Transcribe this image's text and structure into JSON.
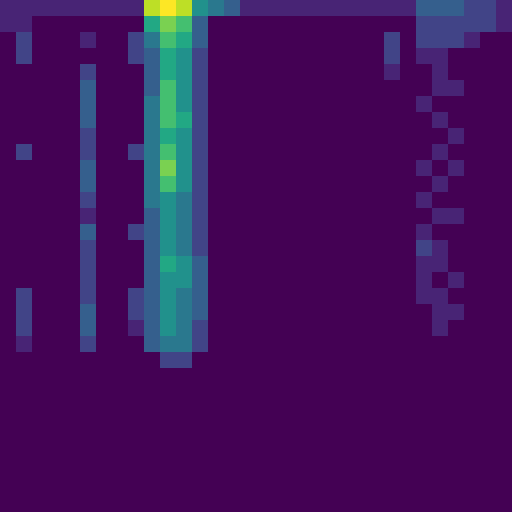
{
  "chart_data": {
    "type": "heatmap",
    "tick_labels": false,
    "color_range": [
      0,
      10
    ],
    "cells": [
      [
        1,
        1,
        1,
        1,
        1,
        1,
        1,
        1,
        1,
        9,
        10,
        9,
        5,
        4,
        3,
        1,
        1,
        1,
        1,
        1,
        1,
        1,
        1,
        1,
        1,
        1,
        3,
        3,
        3,
        2,
        2,
        1
      ],
      [
        1,
        1,
        0,
        0,
        0,
        0,
        0,
        0,
        0,
        6,
        8,
        7,
        3,
        0,
        0,
        0,
        0,
        0,
        0,
        0,
        0,
        0,
        0,
        0,
        0,
        0,
        2,
        2,
        2,
        2,
        2,
        1
      ],
      [
        0,
        2,
        0,
        0,
        0,
        1,
        0,
        0,
        2,
        4,
        7,
        6,
        3,
        0,
        0,
        0,
        0,
        0,
        0,
        0,
        0,
        0,
        0,
        0,
        2,
        0,
        2,
        2,
        2,
        1,
        0,
        0
      ],
      [
        0,
        2,
        0,
        0,
        0,
        0,
        0,
        0,
        2,
        3,
        6,
        5,
        2,
        0,
        0,
        0,
        0,
        0,
        0,
        0,
        0,
        0,
        0,
        0,
        2,
        0,
        1,
        1,
        0,
        0,
        0,
        0
      ],
      [
        0,
        0,
        0,
        0,
        0,
        2,
        0,
        0,
        0,
        3,
        6,
        5,
        2,
        0,
        0,
        0,
        0,
        0,
        0,
        0,
        0,
        0,
        0,
        0,
        1,
        0,
        0,
        1,
        0,
        0,
        0,
        0
      ],
      [
        0,
        0,
        0,
        0,
        0,
        3,
        0,
        0,
        0,
        3,
        7,
        5,
        2,
        0,
        0,
        0,
        0,
        0,
        0,
        0,
        0,
        0,
        0,
        0,
        0,
        0,
        0,
        1,
        1,
        0,
        0,
        0
      ],
      [
        0,
        0,
        0,
        0,
        0,
        3,
        0,
        0,
        0,
        4,
        7,
        5,
        2,
        0,
        0,
        0,
        0,
        0,
        0,
        0,
        0,
        0,
        0,
        0,
        0,
        0,
        1,
        0,
        0,
        0,
        0,
        0
      ],
      [
        0,
        0,
        0,
        0,
        0,
        3,
        0,
        0,
        0,
        4,
        7,
        6,
        2,
        0,
        0,
        0,
        0,
        0,
        0,
        0,
        0,
        0,
        0,
        0,
        0,
        0,
        0,
        1,
        0,
        0,
        0,
        0
      ],
      [
        0,
        0,
        0,
        0,
        0,
        2,
        0,
        0,
        0,
        4,
        6,
        5,
        2,
        0,
        0,
        0,
        0,
        0,
        0,
        0,
        0,
        0,
        0,
        0,
        0,
        0,
        0,
        0,
        1,
        0,
        0,
        0
      ],
      [
        0,
        2,
        0,
        0,
        0,
        2,
        0,
        0,
        2,
        4,
        7,
        5,
        2,
        0,
        0,
        0,
        0,
        0,
        0,
        0,
        0,
        0,
        0,
        0,
        0,
        0,
        0,
        1,
        0,
        0,
        0,
        0
      ],
      [
        0,
        0,
        0,
        0,
        0,
        3,
        0,
        0,
        0,
        4,
        8,
        5,
        2,
        0,
        0,
        0,
        0,
        0,
        0,
        0,
        0,
        0,
        0,
        0,
        0,
        0,
        1,
        0,
        1,
        0,
        0,
        0
      ],
      [
        0,
        0,
        0,
        0,
        0,
        3,
        0,
        0,
        0,
        4,
        7,
        5,
        2,
        0,
        0,
        0,
        0,
        0,
        0,
        0,
        0,
        0,
        0,
        0,
        0,
        0,
        0,
        1,
        0,
        0,
        0,
        0
      ],
      [
        0,
        0,
        0,
        0,
        0,
        2,
        0,
        0,
        0,
        4,
        5,
        4,
        2,
        0,
        0,
        0,
        0,
        0,
        0,
        0,
        0,
        0,
        0,
        0,
        0,
        0,
        1,
        0,
        0,
        0,
        0,
        0
      ],
      [
        0,
        0,
        0,
        0,
        0,
        1,
        0,
        0,
        0,
        3,
        5,
        4,
        2,
        0,
        0,
        0,
        0,
        0,
        0,
        0,
        0,
        0,
        0,
        0,
        0,
        0,
        0,
        1,
        1,
        0,
        0,
        0
      ],
      [
        0,
        0,
        0,
        0,
        0,
        3,
        0,
        0,
        2,
        3,
        5,
        4,
        2,
        0,
        0,
        0,
        0,
        0,
        0,
        0,
        0,
        0,
        0,
        0,
        0,
        0,
        1,
        0,
        0,
        0,
        0,
        0
      ],
      [
        0,
        0,
        0,
        0,
        0,
        2,
        0,
        0,
        0,
        3,
        5,
        4,
        2,
        0,
        0,
        0,
        0,
        0,
        0,
        0,
        0,
        0,
        0,
        0,
        0,
        0,
        2,
        1,
        0,
        0,
        0,
        0
      ],
      [
        0,
        0,
        0,
        0,
        0,
        2,
        0,
        0,
        0,
        3,
        6,
        5,
        3,
        0,
        0,
        0,
        0,
        0,
        0,
        0,
        0,
        0,
        0,
        0,
        0,
        0,
        1,
        1,
        0,
        0,
        0,
        0
      ],
      [
        0,
        0,
        0,
        0,
        0,
        2,
        0,
        0,
        0,
        3,
        5,
        5,
        3,
        0,
        0,
        0,
        0,
        0,
        0,
        0,
        0,
        0,
        0,
        0,
        0,
        0,
        1,
        0,
        1,
        0,
        0,
        0
      ],
      [
        0,
        2,
        0,
        0,
        0,
        2,
        0,
        0,
        2,
        3,
        5,
        4,
        3,
        0,
        0,
        0,
        0,
        0,
        0,
        0,
        0,
        0,
        0,
        0,
        0,
        0,
        1,
        1,
        0,
        0,
        0,
        0
      ],
      [
        0,
        2,
        0,
        0,
        0,
        3,
        0,
        0,
        2,
        3,
        5,
        4,
        3,
        0,
        0,
        0,
        0,
        0,
        0,
        0,
        0,
        0,
        0,
        0,
        0,
        0,
        0,
        1,
        1,
        0,
        0,
        0
      ],
      [
        0,
        2,
        0,
        0,
        0,
        3,
        0,
        0,
        1,
        3,
        5,
        4,
        2,
        0,
        0,
        0,
        0,
        0,
        0,
        0,
        0,
        0,
        0,
        0,
        0,
        0,
        0,
        1,
        0,
        0,
        0,
        0
      ],
      [
        0,
        1,
        0,
        0,
        0,
        2,
        0,
        0,
        0,
        3,
        4,
        4,
        2,
        0,
        0,
        0,
        0,
        0,
        0,
        0,
        0,
        0,
        0,
        0,
        0,
        0,
        0,
        0,
        0,
        0,
        0,
        0
      ],
      [
        0,
        0,
        0,
        0,
        0,
        0,
        0,
        0,
        0,
        0,
        2,
        2,
        0,
        0,
        0,
        0,
        0,
        0,
        0,
        0,
        0,
        0,
        0,
        0,
        0,
        0,
        0,
        0,
        0,
        0,
        0,
        0
      ],
      [
        0,
        0,
        0,
        0,
        0,
        0,
        0,
        0,
        0,
        0,
        0,
        0,
        0,
        0,
        0,
        0,
        0,
        0,
        0,
        0,
        0,
        0,
        0,
        0,
        0,
        0,
        0,
        0,
        0,
        0,
        0,
        0
      ],
      [
        0,
        0,
        0,
        0,
        0,
        0,
        0,
        0,
        0,
        0,
        0,
        0,
        0,
        0,
        0,
        0,
        0,
        0,
        0,
        0,
        0,
        0,
        0,
        0,
        0,
        0,
        0,
        0,
        0,
        0,
        0,
        0
      ],
      [
        0,
        0,
        0,
        0,
        0,
        0,
        0,
        0,
        0,
        0,
        0,
        0,
        0,
        0,
        0,
        0,
        0,
        0,
        0,
        0,
        0,
        0,
        0,
        0,
        0,
        0,
        0,
        0,
        0,
        0,
        0,
        0
      ],
      [
        0,
        0,
        0,
        0,
        0,
        0,
        0,
        0,
        0,
        0,
        0,
        0,
        0,
        0,
        0,
        0,
        0,
        0,
        0,
        0,
        0,
        0,
        0,
        0,
        0,
        0,
        0,
        0,
        0,
        0,
        0,
        0
      ],
      [
        0,
        0,
        0,
        0,
        0,
        0,
        0,
        0,
        0,
        0,
        0,
        0,
        0,
        0,
        0,
        0,
        0,
        0,
        0,
        0,
        0,
        0,
        0,
        0,
        0,
        0,
        0,
        0,
        0,
        0,
        0,
        0
      ],
      [
        0,
        0,
        0,
        0,
        0,
        0,
        0,
        0,
        0,
        0,
        0,
        0,
        0,
        0,
        0,
        0,
        0,
        0,
        0,
        0,
        0,
        0,
        0,
        0,
        0,
        0,
        0,
        0,
        0,
        0,
        0,
        0
      ],
      [
        0,
        0,
        0,
        0,
        0,
        0,
        0,
        0,
        0,
        0,
        0,
        0,
        0,
        0,
        0,
        0,
        0,
        0,
        0,
        0,
        0,
        0,
        0,
        0,
        0,
        0,
        0,
        0,
        0,
        0,
        0,
        0
      ],
      [
        0,
        0,
        0,
        0,
        0,
        0,
        0,
        0,
        0,
        0,
        0,
        0,
        0,
        0,
        0,
        0,
        0,
        0,
        0,
        0,
        0,
        0,
        0,
        0,
        0,
        0,
        0,
        0,
        0,
        0,
        0,
        0
      ],
      [
        0,
        0,
        0,
        0,
        0,
        0,
        0,
        0,
        0,
        0,
        0,
        0,
        0,
        0,
        0,
        0,
        0,
        0,
        0,
        0,
        0,
        0,
        0,
        0,
        0,
        0,
        0,
        0,
        0,
        0,
        0,
        0
      ]
    ]
  }
}
